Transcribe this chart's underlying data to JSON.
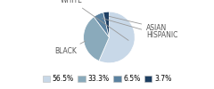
{
  "labels": [
    "WHITE",
    "BLACK",
    "HISPANIC",
    "ASIAN"
  ],
  "values": [
    56.5,
    33.3,
    6.5,
    3.7
  ],
  "colors": [
    "#c8d8e8",
    "#8aaabb",
    "#5b82a0",
    "#1e3f62"
  ],
  "legend_labels": [
    "56.5%",
    "33.3%",
    "6.5%",
    "3.7%"
  ],
  "startangle": 90,
  "label_fontsize": 5.5,
  "legend_fontsize": 5.5,
  "background_color": "#ffffff",
  "text_color": "#555555"
}
